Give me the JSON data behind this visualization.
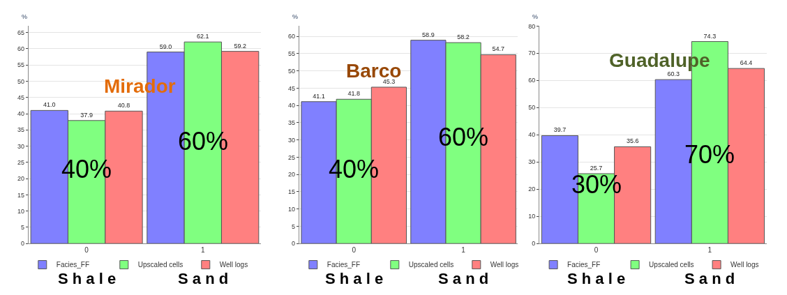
{
  "chart_data": [
    {
      "type": "bar",
      "title": "Mirador",
      "ylabel": "%",
      "categories": [
        "0",
        "1"
      ],
      "series": [
        {
          "name": "Facies_FF",
          "color": "#8080ff",
          "values": [
            41.0,
            59.0
          ],
          "value_labels": [
            "41.0",
            "59.0"
          ]
        },
        {
          "name": "Upscaled cells",
          "color": "#80ff80",
          "values": [
            37.9,
            62.1
          ],
          "value_labels": [
            "37.9",
            "62.1"
          ]
        },
        {
          "name": "Well logs",
          "color": "#ff8080",
          "values": [
            40.8,
            59.2
          ],
          "value_labels": [
            "40.8",
            "59.2"
          ]
        }
      ],
      "ylim": [
        0,
        67
      ],
      "yticks": [
        0,
        5,
        10,
        15,
        20,
        25,
        30,
        35,
        40,
        45,
        50,
        55,
        60,
        65
      ],
      "grid": "y",
      "legend": "bottom",
      "annotations": [
        "40%",
        "60%",
        "S h a l e",
        "S a n d"
      ]
    },
    {
      "type": "bar",
      "title": "Barco",
      "ylabel": "%",
      "categories": [
        "0",
        "1"
      ],
      "series": [
        {
          "name": "Facies_FF",
          "color": "#8080ff",
          "values": [
            41.1,
            58.9
          ],
          "value_labels": [
            "41.1",
            "58.9"
          ]
        },
        {
          "name": "Upscaled cells",
          "color": "#80ff80",
          "values": [
            41.8,
            58.2
          ],
          "value_labels": [
            "41.8",
            "58.2"
          ]
        },
        {
          "name": "Well logs",
          "color": "#ff8080",
          "values": [
            45.3,
            54.7
          ],
          "value_labels": [
            "45.3",
            "54.7"
          ]
        }
      ],
      "ylim": [
        0,
        63
      ],
      "yticks": [
        0,
        5,
        10,
        15,
        20,
        25,
        30,
        35,
        40,
        45,
        50,
        55,
        60
      ],
      "grid": "y",
      "legend": "bottom",
      "annotations": [
        "40%",
        "60%",
        "S h a l e",
        "S a n d"
      ]
    },
    {
      "type": "bar",
      "title": "Guadalupe",
      "ylabel": "%",
      "categories": [
        "0",
        "1"
      ],
      "series": [
        {
          "name": "Facies_FF",
          "color": "#8080ff",
          "values": [
            39.7,
            60.3
          ],
          "value_labels": [
            "39.7",
            "60.3"
          ]
        },
        {
          "name": "Upscaled cells",
          "color": "#80ff80",
          "values": [
            25.7,
            74.3
          ],
          "value_labels": [
            "25.7",
            "74.3"
          ]
        },
        {
          "name": "Well logs",
          "color": "#ff8080",
          "values": [
            35.6,
            64.4
          ],
          "value_labels": [
            "35.6",
            "64.4"
          ]
        }
      ],
      "ylim": [
        0,
        80
      ],
      "yticks": [
        0,
        10,
        20,
        30,
        40,
        50,
        60,
        70,
        80
      ],
      "grid": "y",
      "legend": "bottom",
      "annotations": [
        "30%",
        "70%",
        "S h a l e",
        "S a n d"
      ]
    }
  ]
}
